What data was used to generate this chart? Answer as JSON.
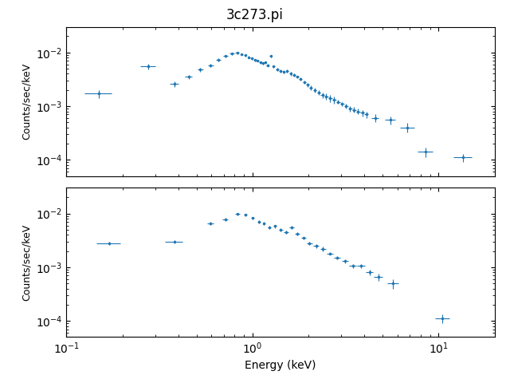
{
  "title": "3c273.pi",
  "xlabel": "Energy (keV)",
  "ylabel": "Counts/sec/keV",
  "color": "#1f77b4",
  "subplot1_data": {
    "x": [
      0.15,
      0.275,
      0.38,
      0.455,
      0.525,
      0.595,
      0.655,
      0.715,
      0.775,
      0.83,
      0.875,
      0.915,
      0.955,
      0.995,
      1.03,
      1.065,
      1.1,
      1.135,
      1.17,
      1.21,
      1.255,
      1.3,
      1.355,
      1.415,
      1.475,
      1.535,
      1.6,
      1.67,
      1.74,
      1.815,
      1.895,
      1.975,
      2.065,
      2.16,
      2.265,
      2.375,
      2.49,
      2.615,
      2.745,
      2.885,
      3.03,
      3.185,
      3.345,
      3.515,
      3.695,
      3.89,
      4.09,
      4.56,
      5.5,
      6.8,
      8.5,
      13.5
    ],
    "y": [
      0.0017,
      0.0055,
      0.0026,
      0.0035,
      0.0048,
      0.0058,
      0.0072,
      0.0085,
      0.0095,
      0.0098,
      0.0092,
      0.0088,
      0.0082,
      0.0078,
      0.0072,
      0.007,
      0.0065,
      0.0063,
      0.0065,
      0.0058,
      0.0085,
      0.0055,
      0.0048,
      0.0045,
      0.0043,
      0.0045,
      0.004,
      0.0038,
      0.0035,
      0.0032,
      0.0028,
      0.0025,
      0.0022,
      0.002,
      0.0018,
      0.0016,
      0.0015,
      0.0014,
      0.0013,
      0.0012,
      0.0011,
      0.001,
      0.0009,
      0.00085,
      0.0008,
      0.00075,
      0.0007,
      0.0006,
      0.00055,
      0.0004,
      0.00014,
      0.00011
    ],
    "xerr": [
      0.025,
      0.025,
      0.02,
      0.02,
      0.02,
      0.02,
      0.02,
      0.02,
      0.02,
      0.02,
      0.015,
      0.015,
      0.015,
      0.015,
      0.015,
      0.015,
      0.015,
      0.015,
      0.015,
      0.02,
      0.02,
      0.02,
      0.025,
      0.025,
      0.025,
      0.025,
      0.03,
      0.03,
      0.03,
      0.035,
      0.035,
      0.04,
      0.04,
      0.045,
      0.05,
      0.05,
      0.055,
      0.06,
      0.065,
      0.07,
      0.075,
      0.08,
      0.085,
      0.09,
      0.095,
      0.1,
      0.11,
      0.2,
      0.35,
      0.6,
      0.8,
      1.5
    ],
    "yerr": [
      0.0003,
      0.0006,
      0.0003,
      0.0003,
      0.0004,
      0.0004,
      0.0005,
      0.0005,
      0.0005,
      0.0005,
      0.0004,
      0.0004,
      0.0004,
      0.0004,
      0.0004,
      0.0003,
      0.0003,
      0.0003,
      0.0003,
      0.0003,
      0.0005,
      0.0003,
      0.0003,
      0.0003,
      0.0003,
      0.0003,
      0.0003,
      0.0003,
      0.0002,
      0.0002,
      0.0002,
      0.0002,
      0.0002,
      0.0002,
      0.0002,
      0.0002,
      0.0002,
      0.0002,
      0.0002,
      0.0001,
      0.0001,
      0.0001,
      0.0001,
      0.0001,
      0.0001,
      0.0001,
      0.0001,
      0.0001,
      0.0001,
      8e-05,
      3e-05,
      2e-05
    ]
  },
  "subplot2_data": {
    "x": [
      0.17,
      0.38,
      0.595,
      0.715,
      0.83,
      0.915,
      1.0,
      1.08,
      1.155,
      1.235,
      1.32,
      1.415,
      1.515,
      1.625,
      1.745,
      1.875,
      2.025,
      2.195,
      2.39,
      2.615,
      2.86,
      3.145,
      3.465,
      3.835,
      4.25,
      4.735,
      5.7,
      10.5
    ],
    "y": [
      0.0028,
      0.003,
      0.0065,
      0.0078,
      0.0098,
      0.0095,
      0.0082,
      0.007,
      0.0065,
      0.0055,
      0.0058,
      0.005,
      0.0045,
      0.0055,
      0.0042,
      0.0035,
      0.0028,
      0.0025,
      0.0022,
      0.0018,
      0.0015,
      0.0013,
      0.00105,
      0.00105,
      0.0008,
      0.00065,
      0.0005,
      0.00011
    ],
    "xerr": [
      0.025,
      0.04,
      0.025,
      0.025,
      0.025,
      0.02,
      0.02,
      0.02,
      0.02,
      0.025,
      0.03,
      0.035,
      0.04,
      0.045,
      0.05,
      0.055,
      0.065,
      0.075,
      0.085,
      0.1,
      0.115,
      0.135,
      0.155,
      0.175,
      0.2,
      0.235,
      0.4,
      0.9
    ],
    "yerr": [
      0.0002,
      0.0002,
      0.0004,
      0.0005,
      0.0005,
      0.0005,
      0.0004,
      0.0004,
      0.0004,
      0.0003,
      0.0004,
      0.0003,
      0.0003,
      0.0004,
      0.0003,
      0.0002,
      0.0002,
      0.0002,
      0.0002,
      0.0001,
      0.0001,
      0.0001,
      0.0001,
      0.0001,
      0.0001,
      0.0001,
      0.0001,
      2e-05
    ]
  }
}
